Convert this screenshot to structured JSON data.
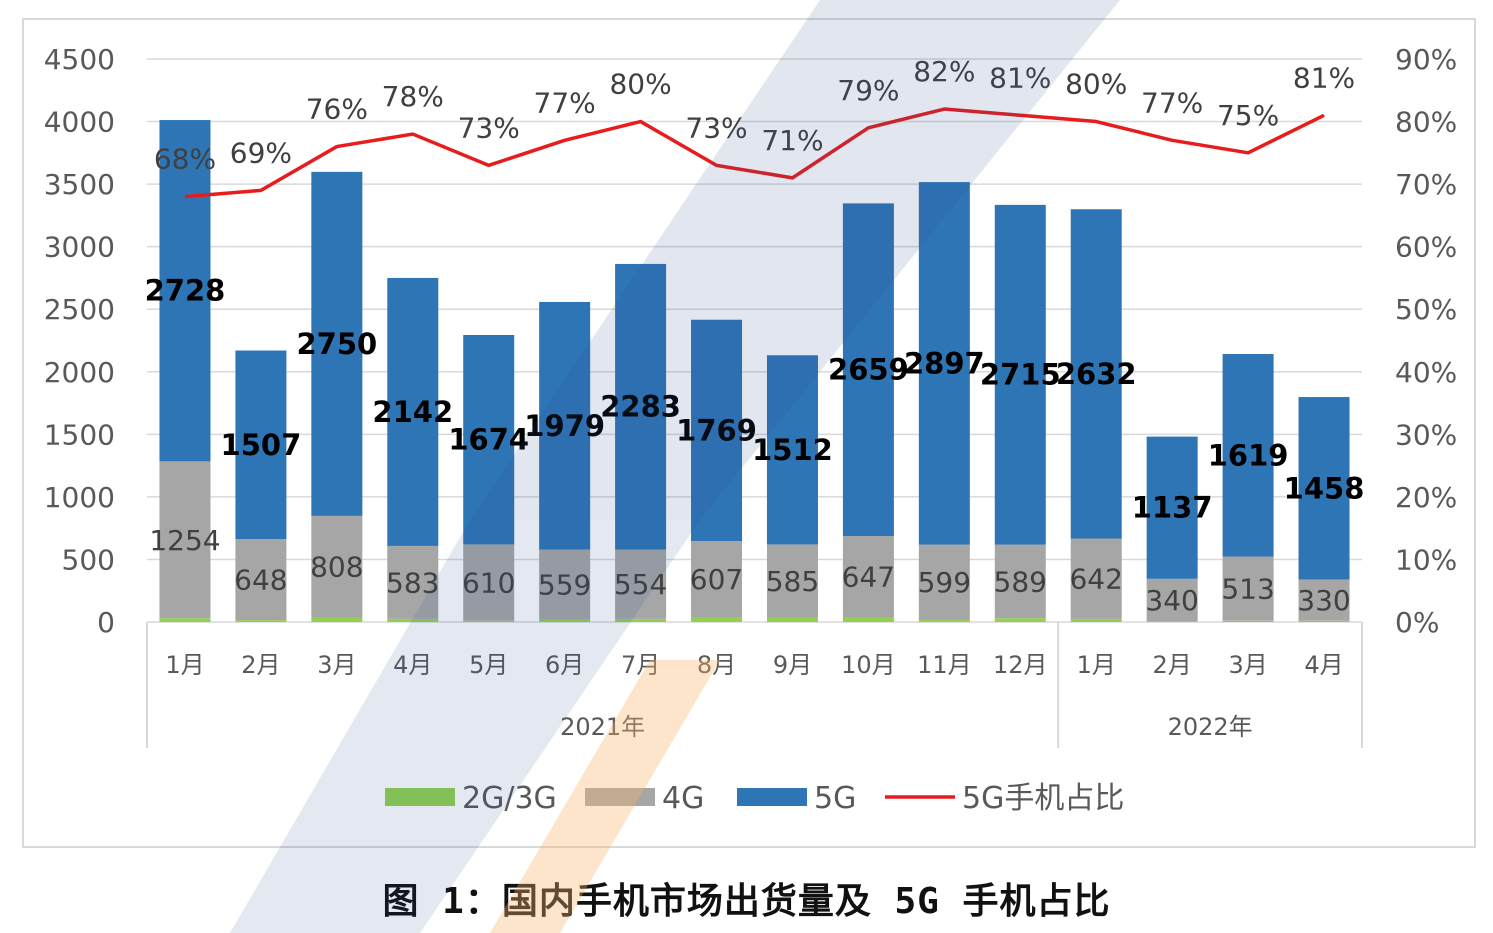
{
  "caption": "图 1：国内手机市场出货量及 5G 手机占比",
  "colors": {
    "2G/3G": "#92d050",
    "4G": "#a6a6a6",
    "5G": "#2e75b6",
    "ratio_line": "#e81c1c",
    "grid": "#d9d9d9",
    "axis_text": "#595959"
  },
  "chart_data": {
    "type": "bar",
    "stacked": true,
    "categories": [
      "1月",
      "2月",
      "3月",
      "4月",
      "5月",
      "6月",
      "7月",
      "8月",
      "9月",
      "10月",
      "11月",
      "12月",
      "1月",
      "2月",
      "3月",
      "4月"
    ],
    "category_groups": [
      {
        "label": "2021年",
        "count": 12
      },
      {
        "label": "2022年",
        "count": 4
      }
    ],
    "series": [
      {
        "name": "2G/3G",
        "values": [
          30,
          15,
          40,
          25,
          10,
          20,
          25,
          40,
          35,
          40,
          20,
          30,
          25,
          5,
          10,
          10
        ]
      },
      {
        "name": "4G",
        "values": [
          1254,
          648,
          808,
          583,
          610,
          559,
          554,
          607,
          585,
          647,
          599,
          589,
          642,
          340,
          513,
          330
        ]
      },
      {
        "name": "5G",
        "values": [
          2728,
          1507,
          2750,
          2142,
          1674,
          1979,
          2283,
          1769,
          1512,
          2659,
          2897,
          2715,
          2632,
          1137,
          1619,
          1458
        ]
      }
    ],
    "line_series": {
      "name": "5G手机占比",
      "values": [
        68,
        69,
        76,
        78,
        73,
        77,
        80,
        73,
        71,
        79,
        82,
        81,
        80,
        77,
        75,
        81
      ],
      "labels": [
        "68%",
        "69%",
        "76%",
        "78%",
        "73%",
        "77%",
        "80%",
        "73%",
        "71%",
        "79%",
        "82%",
        "81%",
        "80%",
        "77%",
        "75%",
        "81%"
      ]
    },
    "bar_labels_4g": [
      "1254",
      "648",
      "808",
      "583",
      "610",
      "559",
      "554",
      "607",
      "585",
      "647",
      "599",
      "589",
      "642",
      "340",
      "513",
      "330"
    ],
    "bar_labels_5g": [
      "2728",
      "1507",
      "2750",
      "2142",
      "1674",
      "1979",
      "2283",
      "1769",
      "1512",
      "2659",
      "2897",
      "2715",
      "2632",
      "1137",
      "1619",
      "1458"
    ],
    "ylim": [
      0,
      4500
    ],
    "y_ticks": [
      "0",
      "500",
      "1000",
      "1500",
      "2000",
      "2500",
      "3000",
      "3500",
      "4000",
      "4500"
    ],
    "y2lim": [
      0,
      90
    ],
    "y2_ticks": [
      "0%",
      "10%",
      "20%",
      "30%",
      "40%",
      "50%",
      "60%",
      "70%",
      "80%",
      "90%"
    ],
    "legend": {
      "position": "bottom",
      "items": [
        "2G/3G",
        "4G",
        "5G",
        "5G手机占比"
      ]
    },
    "grid": true
  }
}
